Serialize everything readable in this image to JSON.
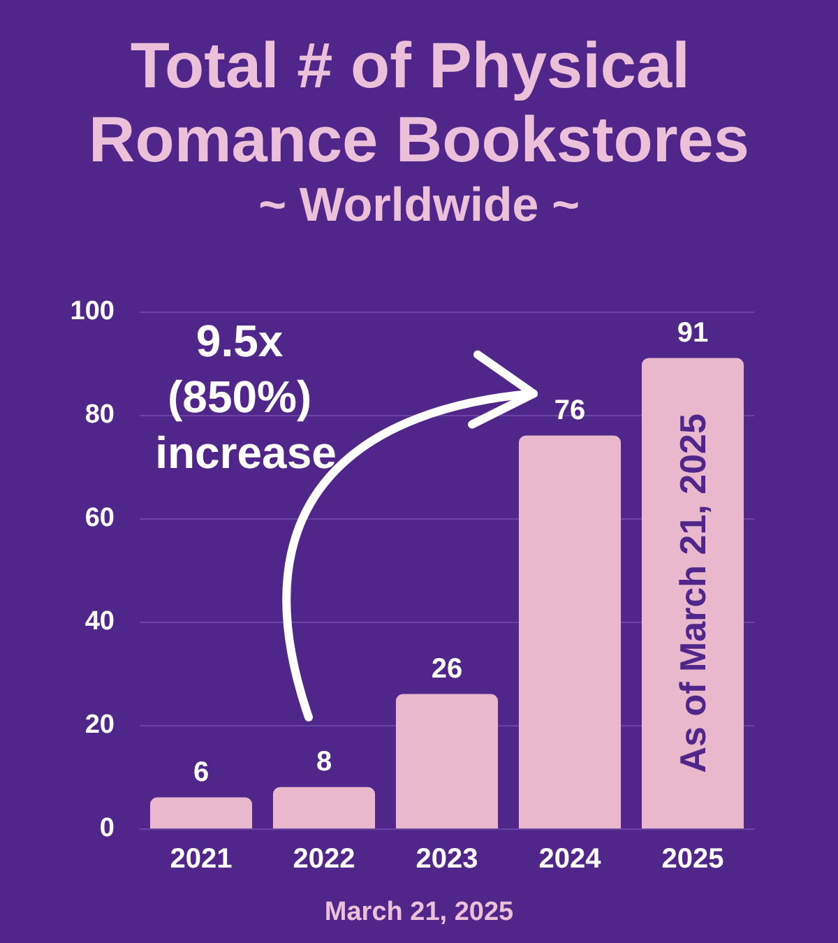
{
  "chart_data": {
    "type": "bar",
    "title": "Total # of Physical Romance Bookstores",
    "subtitle": "~ Worldwide ~",
    "categories": [
      "2021",
      "2022",
      "2023",
      "2024",
      "2025"
    ],
    "values": [
      6,
      8,
      26,
      76,
      91
    ],
    "color": "#e9b8cc",
    "ylim": [
      0,
      100
    ],
    "yticks": [
      0,
      20,
      40,
      60,
      80,
      100
    ],
    "grid": "y",
    "data_labels": true,
    "annotations": [
      "9.5x (850%) increase",
      "As of March 21, 2025",
      "March 21, 2025"
    ]
  }
}
